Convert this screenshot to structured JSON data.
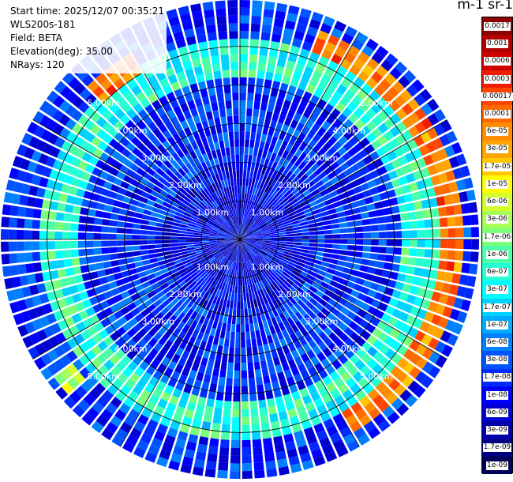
{
  "info": {
    "start_time": "Start time: 2025/12/07 00:35:21",
    "instrument": "WLS200s-181",
    "field": "Field: BETA",
    "elevation": "Elevation(deg): 35.00",
    "nrays": "NRays: 120"
  },
  "colorbar": {
    "title": "m-1 sr-1",
    "labels": [
      "0.0017",
      "0.001",
      "0.0006",
      "0.0003",
      "0.00017",
      "0.0001",
      "6e-05",
      "3e-05",
      "1.7e-05",
      "1e-05",
      "6e-06",
      "3e-06",
      "1.7e-06",
      "1e-06",
      "6e-07",
      "3e-07",
      "1.7e-07",
      "1e-07",
      "6e-08",
      "3e-08",
      "1.7e-08",
      "1e-08",
      "6e-09",
      "3e-09",
      "1.7e-09",
      "1e-09"
    ],
    "colors": [
      "#8b0000",
      "#b20000",
      "#d10000",
      "#ee1c00",
      "#ff4500",
      "#ff6a00",
      "#ff8c00",
      "#ffa500",
      "#ffc800",
      "#ffff00",
      "#d4ff2a",
      "#a6ff59",
      "#7cff79",
      "#4dffa6",
      "#26ffd2",
      "#00ffff",
      "#00d2ff",
      "#00aaff",
      "#0080ff",
      "#0055ff",
      "#002aff",
      "#0000ff",
      "#0000d2",
      "#0000aa",
      "#000080",
      "#000055"
    ]
  },
  "chart_data": {
    "type": "heatmap",
    "projection": "polar-ppi",
    "field": "BETA",
    "units": "m-1 sr-1",
    "n_rays": 120,
    "elevation_deg": 35.0,
    "range_rings_km": [
      1.0,
      2.0,
      3.0,
      4.0,
      5.0
    ],
    "ring_labels": [
      "1.00km",
      "2.00km",
      "3.00km",
      "4.00km",
      "5.00km"
    ],
    "max_range_km": 6.2,
    "scale": "log",
    "value_range": [
      1e-09,
      0.0017
    ],
    "background_level": 2e-08,
    "features": [
      {
        "name": "inner-weak-zone",
        "range_km": [
          0.0,
          2.0
        ],
        "typical_value": 1e-08
      },
      {
        "name": "aerosol-ring",
        "range_km": [
          4.2,
          5.2
        ],
        "typical_value": 5e-07
      },
      {
        "name": "cloud-arc-east",
        "azimuth_deg": [
          20,
          150
        ],
        "range_km": [
          5.3,
          5.8
        ],
        "typical_value": 6e-05
      },
      {
        "name": "cloud-patch-northwest",
        "azimuth_deg": [
          315,
          330
        ],
        "range_km": [
          5.0,
          5.5
        ],
        "typical_value": 0.0001
      },
      {
        "name": "haze-patch-southwest",
        "azimuth_deg": [
          228,
          235
        ],
        "range_km": [
          5.4,
          5.9
        ],
        "typical_value": 3e-06
      }
    ]
  }
}
